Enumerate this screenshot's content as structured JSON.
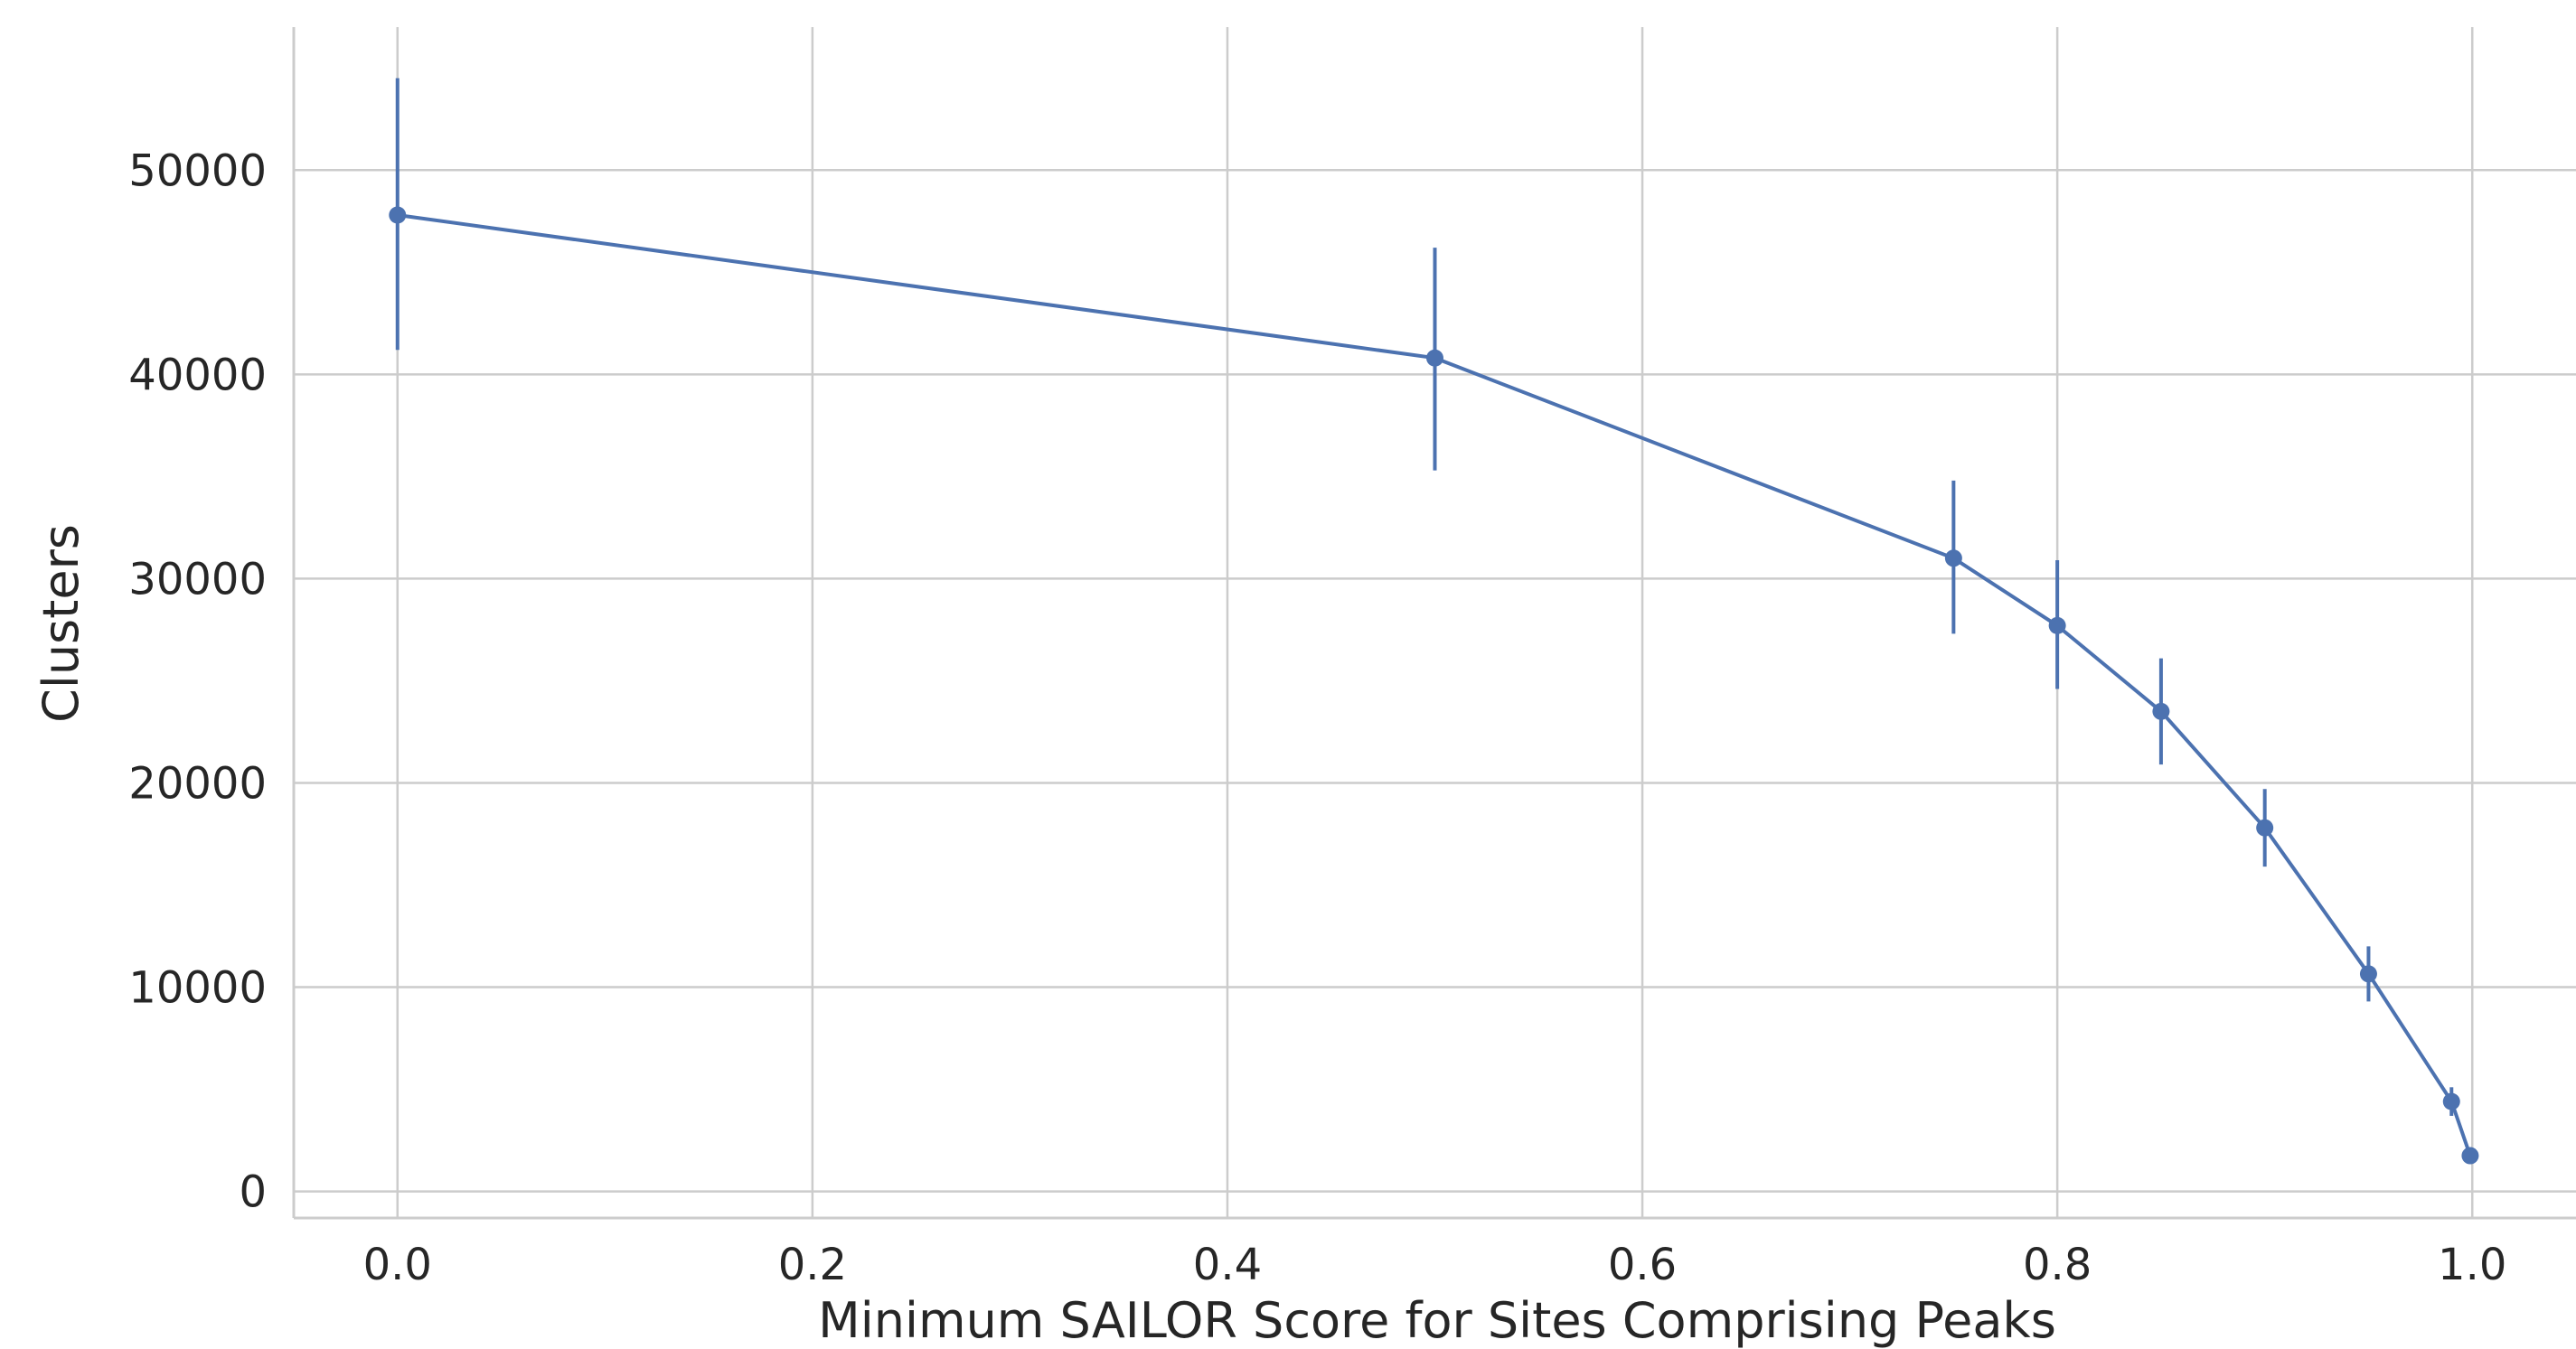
{
  "chart_data": {
    "type": "line",
    "title": "",
    "xlabel": "Minimum SAILOR Score for Sites Comprising Peaks",
    "ylabel": "Clusters",
    "xlim": [
      -0.05,
      1.05
    ],
    "ylim": [
      -1300,
      57000
    ],
    "xticks": [
      0.0,
      0.2,
      0.4,
      0.6,
      0.8,
      1.0
    ],
    "xtick_labels": [
      "0.0",
      "0.2",
      "0.4",
      "0.6",
      "0.8",
      "1.0"
    ],
    "yticks": [
      0,
      10000,
      20000,
      30000,
      40000,
      50000
    ],
    "ytick_labels": [
      "0",
      "10000",
      "20000",
      "30000",
      "40000",
      "50000"
    ],
    "grid": true,
    "series": [
      {
        "x": [
          0.0,
          0.5,
          0.75,
          0.8,
          0.85,
          0.9,
          0.95,
          0.99,
          0.999
        ],
        "y": [
          47800,
          40800,
          31000,
          27700,
          23500,
          17800,
          10650,
          4400,
          1750
        ],
        "err_low": [
          41200,
          35300,
          27300,
          24600,
          20900,
          15900,
          9300,
          3700,
          1500
        ],
        "err_high": [
          54500,
          46200,
          34800,
          30900,
          26100,
          19700,
          12000,
          5100,
          2000
        ]
      }
    ],
    "colors": {
      "series": "#4c72b0",
      "grid": "#cccccc",
      "text": "#262626"
    }
  }
}
